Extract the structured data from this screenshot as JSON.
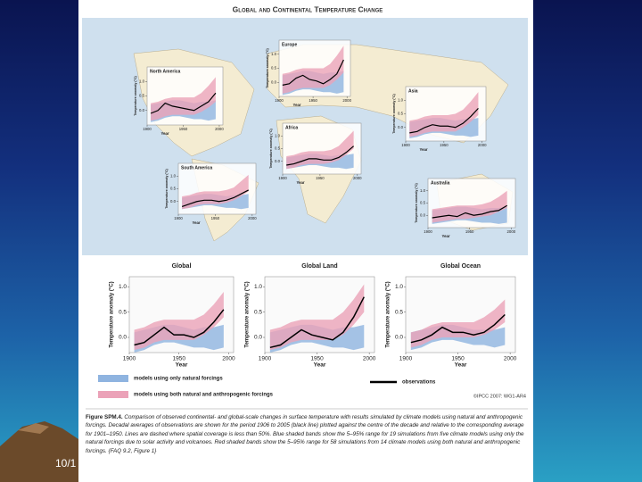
{
  "slide": {
    "date_fragment": "10/1"
  },
  "figure": {
    "title": "Global and Continental Temperature Change",
    "copyright": "©IPCC 2007: WG1-AR4",
    "caption": {
      "label": "Figure SPM.4.",
      "text": "Comparison of observed continental- and global-scale changes in surface temperature with results simulated by climate models using natural and anthropogenic forcings. Decadal averages of observations are shown for the period 1906 to 2005 (black line) plotted against the centre of the decade and relative to the corresponding average for 1901–1950. Lines are dashed where spatial coverage is less than 50%. Blue shaded bands show the 5–95% range for 19 simulations from five climate models using only the natural forcings due to solar activity and volcanoes. Red shaded bands show the 5–95% range for 58 simulations from 14 climate models using both natural and anthropogenic forcings. {FAQ 9.2, Figure 1}"
    }
  },
  "chart_data": [
    {
      "type": "line",
      "title": "Global",
      "xlabel": "Year",
      "ylabel": "Temperature anomaly (°C)",
      "x": [
        1905,
        1915,
        1925,
        1935,
        1945,
        1955,
        1965,
        1975,
        1985,
        1995
      ],
      "xlim": [
        1900,
        2005
      ],
      "xticks": [
        1900,
        1950,
        2000
      ],
      "ylim": [
        -0.3,
        1.2
      ],
      "yticks": [
        {
          "value": 0,
          "label": "0.0"
        },
        {
          "value": 0.5,
          "label": "0.5"
        },
        {
          "value": 1,
          "label": "1.0"
        }
      ],
      "series": [
        {
          "name": "models using only natural forcings",
          "color": "#8fb4e0",
          "low": [
            -0.3,
            -0.25,
            -0.15,
            -0.1,
            -0.1,
            -0.15,
            -0.2,
            -0.2,
            -0.25,
            -0.2
          ],
          "high": [
            0.1,
            0.15,
            0.2,
            0.25,
            0.25,
            0.2,
            0.15,
            0.2,
            0.2,
            0.25
          ]
        },
        {
          "name": "models using both natural and anthropogenic forcings",
          "color": "#eba2b8",
          "low": [
            -0.25,
            -0.2,
            -0.1,
            -0.05,
            -0.05,
            -0.05,
            -0.05,
            0.05,
            0.2,
            0.4
          ],
          "high": [
            0.15,
            0.2,
            0.3,
            0.35,
            0.35,
            0.35,
            0.35,
            0.45,
            0.65,
            0.9
          ]
        },
        {
          "name": "observations",
          "color": "#000000",
          "values": [
            -0.15,
            -0.1,
            0.05,
            0.2,
            0.05,
            0.05,
            0.0,
            0.1,
            0.3,
            0.55
          ]
        }
      ]
    },
    {
      "type": "line",
      "title": "Global Land",
      "xlabel": "Year",
      "ylabel": "Temperature anomaly (°C)",
      "x": [
        1905,
        1915,
        1925,
        1935,
        1945,
        1955,
        1965,
        1975,
        1985,
        1995
      ],
      "xlim": [
        1900,
        2005
      ],
      "xticks": [
        1900,
        1950,
        2000
      ],
      "ylim": [
        -0.3,
        1.2
      ],
      "yticks": [
        {
          "value": 0,
          "label": "0.0"
        },
        {
          "value": 0.5,
          "label": "0.5"
        },
        {
          "value": 1,
          "label": "1.0"
        }
      ],
      "series": [
        {
          "name": "models using only natural forcings",
          "color": "#8fb4e0",
          "low": [
            -0.3,
            -0.25,
            -0.15,
            -0.1,
            -0.1,
            -0.15,
            -0.2,
            -0.2,
            -0.25,
            -0.2
          ],
          "high": [
            0.1,
            0.15,
            0.2,
            0.25,
            0.25,
            0.2,
            0.15,
            0.2,
            0.2,
            0.25
          ]
        },
        {
          "name": "models using both natural and anthropogenic forcings",
          "color": "#eba2b8",
          "low": [
            -0.25,
            -0.2,
            -0.1,
            -0.05,
            -0.05,
            -0.05,
            -0.05,
            0.05,
            0.25,
            0.5
          ],
          "high": [
            0.15,
            0.2,
            0.3,
            0.35,
            0.35,
            0.35,
            0.35,
            0.5,
            0.75,
            1.05
          ]
        },
        {
          "name": "observations",
          "color": "#000000",
          "values": [
            -0.2,
            -0.15,
            0.0,
            0.15,
            0.05,
            0.0,
            -0.05,
            0.1,
            0.4,
            0.8
          ]
        }
      ]
    },
    {
      "type": "line",
      "title": "Global Ocean",
      "xlabel": "Year",
      "ylabel": "Temperature anomaly (°C)",
      "x": [
        1905,
        1915,
        1925,
        1935,
        1945,
        1955,
        1965,
        1975,
        1985,
        1995
      ],
      "xlim": [
        1900,
        2005
      ],
      "xticks": [
        1900,
        1950,
        2000
      ],
      "ylim": [
        -0.3,
        1.2
      ],
      "yticks": [
        {
          "value": 0,
          "label": "0.0"
        },
        {
          "value": 0.5,
          "label": "0.5"
        },
        {
          "value": 1,
          "label": "1.0"
        }
      ],
      "series": [
        {
          "name": "models using only natural forcings",
          "color": "#8fb4e0",
          "low": [
            -0.25,
            -0.2,
            -0.1,
            -0.05,
            -0.05,
            -0.1,
            -0.15,
            -0.15,
            -0.2,
            -0.15
          ],
          "high": [
            0.1,
            0.15,
            0.2,
            0.25,
            0.25,
            0.2,
            0.15,
            0.15,
            0.15,
            0.2
          ]
        },
        {
          "name": "models using both natural and anthropogenic forcings",
          "color": "#eba2b8",
          "low": [
            -0.2,
            -0.15,
            -0.05,
            0.0,
            0.0,
            0.0,
            0.0,
            0.05,
            0.15,
            0.3
          ],
          "high": [
            0.1,
            0.15,
            0.25,
            0.3,
            0.3,
            0.3,
            0.3,
            0.4,
            0.55,
            0.75
          ]
        },
        {
          "name": "observations",
          "color": "#000000",
          "values": [
            -0.1,
            -0.05,
            0.05,
            0.2,
            0.1,
            0.1,
            0.05,
            0.1,
            0.25,
            0.45
          ]
        }
      ]
    },
    {
      "type": "line",
      "title": "North America",
      "xlabel": "Year",
      "ylabel": "Temperature anomaly (°C)",
      "x": [
        1905,
        1915,
        1925,
        1935,
        1945,
        1955,
        1965,
        1975,
        1985,
        1995
      ],
      "xlim": [
        1900,
        2005
      ],
      "xticks": [
        1900,
        1950,
        2000
      ],
      "ylim": [
        -0.5,
        1.5
      ],
      "yticks": [
        {
          "value": 0,
          "label": "0.0"
        },
        {
          "value": 0.5,
          "label": "0.5"
        },
        {
          "value": 1,
          "label": "1.0"
        }
      ],
      "series": [
        {
          "name": "models using only natural forcings",
          "color": "#8fb4e0",
          "low": [
            -0.4,
            -0.35,
            -0.25,
            -0.2,
            -0.2,
            -0.25,
            -0.3,
            -0.3,
            -0.35,
            -0.3
          ],
          "high": [
            0.2,
            0.25,
            0.3,
            0.35,
            0.35,
            0.3,
            0.25,
            0.3,
            0.3,
            0.35
          ]
        },
        {
          "name": "models using both natural and anthropogenic forcings",
          "color": "#eba2b8",
          "low": [
            -0.35,
            -0.3,
            -0.2,
            -0.15,
            -0.15,
            -0.15,
            -0.15,
            -0.05,
            0.1,
            0.3
          ],
          "high": [
            0.25,
            0.3,
            0.4,
            0.45,
            0.45,
            0.45,
            0.45,
            0.6,
            0.85,
            1.15
          ]
        },
        {
          "name": "observations",
          "color": "#000000",
          "values": [
            -0.1,
            0.0,
            0.25,
            0.15,
            0.1,
            0.05,
            0.0,
            0.15,
            0.3,
            0.6
          ]
        }
      ]
    },
    {
      "type": "line",
      "title": "Europe",
      "xlabel": "Year",
      "ylabel": "Temperature anomaly (°C)",
      "x": [
        1905,
        1915,
        1925,
        1935,
        1945,
        1955,
        1965,
        1975,
        1985,
        1995
      ],
      "xlim": [
        1900,
        2005
      ],
      "xticks": [
        1900,
        1950,
        2000
      ],
      "ylim": [
        -0.5,
        1.5
      ],
      "yticks": [
        {
          "value": 0,
          "label": "0.0"
        },
        {
          "value": 0.5,
          "label": "0.5"
        },
        {
          "value": 1,
          "label": "1.0"
        }
      ],
      "series": [
        {
          "name": "models using only natural forcings",
          "color": "#8fb4e0",
          "low": [
            -0.45,
            -0.4,
            -0.3,
            -0.25,
            -0.25,
            -0.3,
            -0.35,
            -0.35,
            -0.4,
            -0.35
          ],
          "high": [
            0.25,
            0.3,
            0.35,
            0.4,
            0.4,
            0.35,
            0.3,
            0.35,
            0.35,
            0.4
          ]
        },
        {
          "name": "models using both natural and anthropogenic forcings",
          "color": "#eba2b8",
          "low": [
            -0.4,
            -0.35,
            -0.25,
            -0.2,
            -0.2,
            -0.2,
            -0.2,
            -0.1,
            0.1,
            0.35
          ],
          "high": [
            0.3,
            0.35,
            0.45,
            0.5,
            0.5,
            0.5,
            0.5,
            0.65,
            0.95,
            1.3
          ]
        },
        {
          "name": "observations",
          "color": "#000000",
          "values": [
            -0.1,
            -0.05,
            0.15,
            0.25,
            0.1,
            0.05,
            -0.05,
            0.1,
            0.3,
            0.8
          ]
        }
      ]
    },
    {
      "type": "line",
      "title": "Asia",
      "xlabel": "Year",
      "ylabel": "Temperature anomaly (°C)",
      "x": [
        1905,
        1915,
        1925,
        1935,
        1945,
        1955,
        1965,
        1975,
        1985,
        1995
      ],
      "xlim": [
        1900,
        2005
      ],
      "xticks": [
        1900,
        1950,
        2000
      ],
      "ylim": [
        -0.5,
        1.5
      ],
      "yticks": [
        {
          "value": 0,
          "label": "0.0"
        },
        {
          "value": 0.5,
          "label": "0.5"
        },
        {
          "value": 1,
          "label": "1.0"
        }
      ],
      "series": [
        {
          "name": "models using only natural forcings",
          "color": "#8fb4e0",
          "low": [
            -0.4,
            -0.35,
            -0.25,
            -0.2,
            -0.2,
            -0.25,
            -0.3,
            -0.3,
            -0.35,
            -0.3
          ],
          "high": [
            0.2,
            0.25,
            0.3,
            0.35,
            0.35,
            0.3,
            0.25,
            0.3,
            0.3,
            0.35
          ]
        },
        {
          "name": "models using both natural and anthropogenic forcings",
          "color": "#eba2b8",
          "low": [
            -0.35,
            -0.3,
            -0.2,
            -0.15,
            -0.15,
            -0.15,
            -0.15,
            0.0,
            0.2,
            0.45
          ],
          "high": [
            0.25,
            0.3,
            0.4,
            0.45,
            0.45,
            0.45,
            0.5,
            0.65,
            0.95,
            1.3
          ]
        },
        {
          "name": "observations",
          "color": "#000000",
          "values": [
            -0.2,
            -0.15,
            0.0,
            0.1,
            0.05,
            0.05,
            0.0,
            0.15,
            0.4,
            0.7
          ]
        }
      ]
    },
    {
      "type": "line",
      "title": "Africa",
      "xlabel": "Year",
      "ylabel": "Temperature anomaly (°C)",
      "x": [
        1905,
        1915,
        1925,
        1935,
        1945,
        1955,
        1965,
        1975,
        1985,
        1995
      ],
      "xlim": [
        1900,
        2005
      ],
      "xticks": [
        1900,
        1950,
        2000
      ],
      "ylim": [
        -0.5,
        1.5
      ],
      "yticks": [
        {
          "value": 0,
          "label": "0.0"
        },
        {
          "value": 0.5,
          "label": "0.5"
        },
        {
          "value": 1,
          "label": "1.0"
        }
      ],
      "series": [
        {
          "name": "models using only natural forcings",
          "color": "#8fb4e0",
          "low": [
            -0.3,
            -0.25,
            -0.2,
            -0.15,
            -0.15,
            -0.2,
            -0.25,
            -0.25,
            -0.3,
            -0.25
          ],
          "high": [
            0.15,
            0.2,
            0.25,
            0.3,
            0.3,
            0.25,
            0.2,
            0.25,
            0.25,
            0.3
          ]
        },
        {
          "name": "models using both natural and anthropogenic forcings",
          "color": "#eba2b8",
          "low": [
            -0.3,
            -0.25,
            -0.15,
            -0.1,
            -0.1,
            -0.1,
            -0.05,
            0.05,
            0.25,
            0.5
          ],
          "high": [
            0.2,
            0.25,
            0.35,
            0.4,
            0.4,
            0.4,
            0.45,
            0.6,
            0.9,
            1.2
          ]
        },
        {
          "name": "observations",
          "color": "#000000",
          "values": [
            -0.15,
            -0.1,
            0.0,
            0.1,
            0.1,
            0.05,
            0.05,
            0.15,
            0.35,
            0.6
          ]
        }
      ]
    },
    {
      "type": "line",
      "title": "South America",
      "xlabel": "Year",
      "ylabel": "Temperature anomaly (°C)",
      "x": [
        1905,
        1915,
        1925,
        1935,
        1945,
        1955,
        1965,
        1975,
        1985,
        1995
      ],
      "xlim": [
        1900,
        2005
      ],
      "xticks": [
        1900,
        1950,
        2000
      ],
      "ylim": [
        -0.5,
        1.5
      ],
      "yticks": [
        {
          "value": 0,
          "label": "0.0"
        },
        {
          "value": 0.5,
          "label": "0.5"
        },
        {
          "value": 1,
          "label": "1.0"
        }
      ],
      "series": [
        {
          "name": "models using only natural forcings",
          "color": "#8fb4e0",
          "low": [
            -0.3,
            -0.25,
            -0.2,
            -0.15,
            -0.15,
            -0.2,
            -0.25,
            -0.25,
            -0.3,
            -0.25
          ],
          "high": [
            0.15,
            0.2,
            0.25,
            0.3,
            0.3,
            0.25,
            0.2,
            0.25,
            0.25,
            0.3
          ]
        },
        {
          "name": "models using both natural and anthropogenic forcings",
          "color": "#eba2b8",
          "low": [
            -0.3,
            -0.25,
            -0.15,
            -0.1,
            -0.1,
            -0.1,
            -0.05,
            0.05,
            0.2,
            0.4
          ],
          "high": [
            0.2,
            0.25,
            0.35,
            0.4,
            0.4,
            0.4,
            0.45,
            0.55,
            0.8,
            1.05
          ]
        },
        {
          "name": "observations",
          "color": "#000000",
          "values": [
            -0.2,
            -0.1,
            0.0,
            0.05,
            0.05,
            0.0,
            0.05,
            0.15,
            0.3,
            0.45
          ]
        }
      ]
    },
    {
      "type": "line",
      "title": "Australia",
      "xlabel": "Year",
      "ylabel": "Temperature anomaly (°C)",
      "x": [
        1905,
        1915,
        1925,
        1935,
        1945,
        1955,
        1965,
        1975,
        1985,
        1995
      ],
      "xlim": [
        1900,
        2005
      ],
      "xticks": [
        1900,
        1950,
        2000
      ],
      "ylim": [
        -0.5,
        1.5
      ],
      "yticks": [
        {
          "value": 0,
          "label": "0.0"
        },
        {
          "value": 0.5,
          "label": "0.5"
        },
        {
          "value": 1,
          "label": "1.0"
        }
      ],
      "series": [
        {
          "name": "models using only natural forcings",
          "color": "#8fb4e0",
          "low": [
            -0.35,
            -0.3,
            -0.25,
            -0.2,
            -0.2,
            -0.25,
            -0.3,
            -0.3,
            -0.35,
            -0.3
          ],
          "high": [
            0.2,
            0.25,
            0.3,
            0.35,
            0.35,
            0.3,
            0.25,
            0.3,
            0.3,
            0.35
          ]
        },
        {
          "name": "models using both natural and anthropogenic forcings",
          "color": "#eba2b8",
          "low": [
            -0.3,
            -0.25,
            -0.2,
            -0.15,
            -0.15,
            -0.1,
            -0.05,
            0.0,
            0.15,
            0.3
          ],
          "high": [
            0.25,
            0.3,
            0.35,
            0.4,
            0.4,
            0.4,
            0.45,
            0.55,
            0.75,
            1.0
          ]
        },
        {
          "name": "observations",
          "color": "#000000",
          "values": [
            -0.1,
            -0.05,
            0.0,
            -0.05,
            0.1,
            0.0,
            0.05,
            0.15,
            0.2,
            0.4
          ]
        }
      ]
    }
  ]
}
